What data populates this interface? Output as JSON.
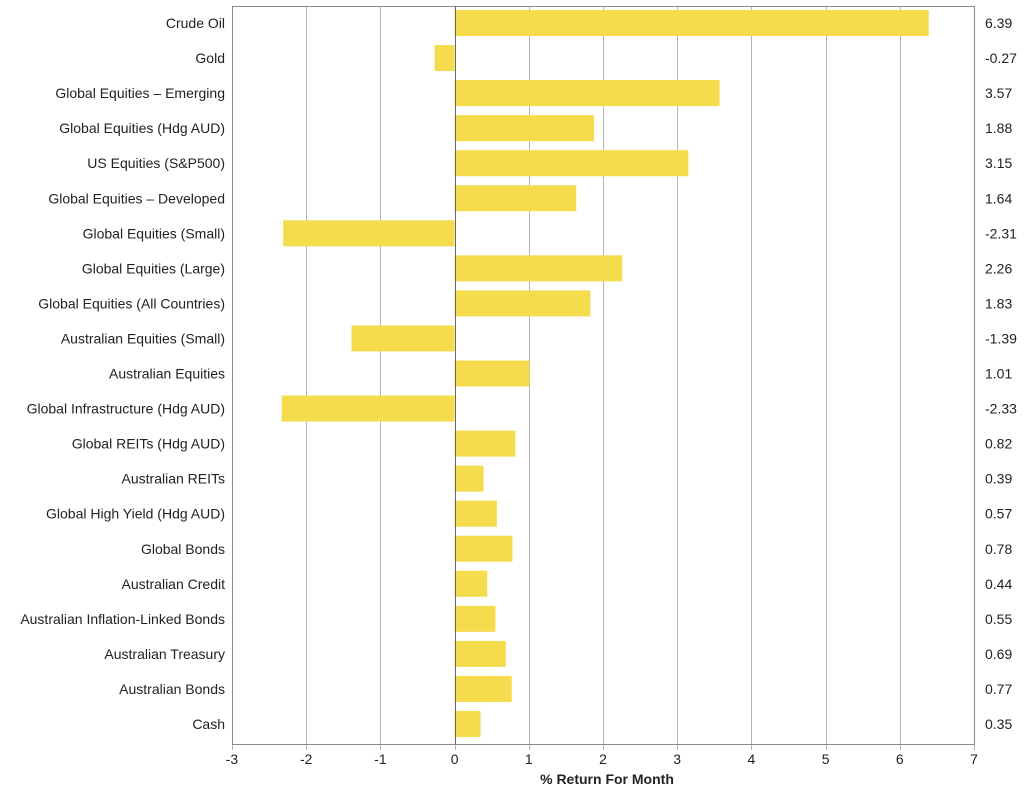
{
  "chart_data": {
    "type": "bar",
    "orientation": "horizontal",
    "categories": [
      "Crude Oil",
      "Gold",
      "Global Equities – Emerging",
      "Global Equities (Hdg AUD)",
      "US Equities (S&P500)",
      "Global Equities – Developed",
      "Global Equities (Small)",
      "Global Equities (Large)",
      "Global Equities (All Countries)",
      "Australian Equities (Small)",
      "Australian Equities",
      "Global Infrastructure (Hdg AUD)",
      "Global REITs (Hdg AUD)",
      "Australian REITs",
      "Global High Yield (Hdg AUD)",
      "Global Bonds",
      "Australian Credit",
      "Australian Inflation-Linked Bonds",
      "Australian Treasury",
      "Australian Bonds",
      "Cash"
    ],
    "values": [
      6.39,
      -0.27,
      3.57,
      1.88,
      3.15,
      1.64,
      -2.31,
      2.26,
      1.83,
      -1.39,
      1.01,
      -2.33,
      0.82,
      0.39,
      0.57,
      0.78,
      0.44,
      0.55,
      0.69,
      0.77,
      0.35
    ],
    "value_labels": [
      "6.39",
      "-0.27",
      "3.57",
      "1.88",
      "3.15",
      "1.64",
      "-2.31",
      "2.26",
      "1.83",
      "-1.39",
      "1.01",
      "-2.33",
      "0.82",
      "0.39",
      "0.57",
      "0.78",
      "0.44",
      "0.55",
      "0.69",
      "0.77",
      "0.35"
    ],
    "xlabel": "% Return For Month",
    "xlim": [
      -3,
      7
    ],
    "xticks": [
      -3,
      -2,
      -1,
      0,
      1,
      2,
      3,
      4,
      5,
      6,
      7
    ],
    "xtick_labels": [
      "-3",
      "-2",
      "-1",
      "0",
      "1",
      "2",
      "3",
      "4",
      "5",
      "6",
      "7"
    ],
    "grid": "vertical",
    "bar_color": "#f5dc4d"
  }
}
